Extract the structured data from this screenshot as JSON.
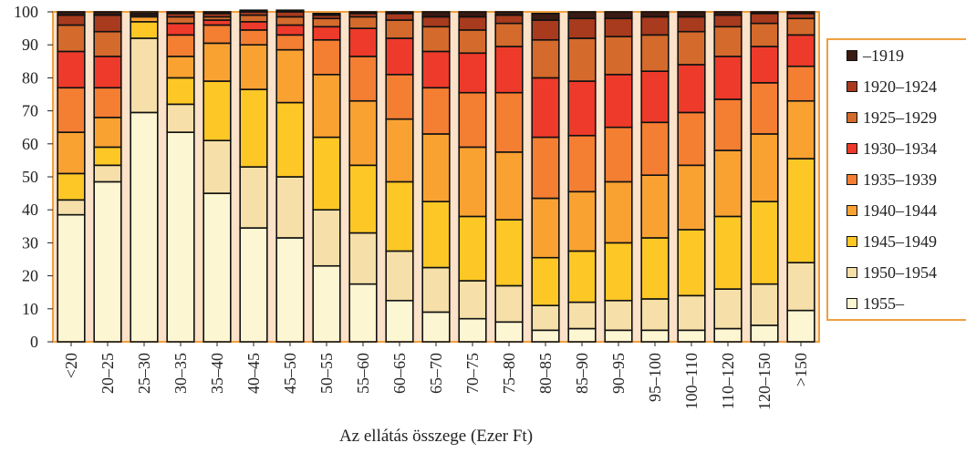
{
  "chart_data": {
    "type": "bar",
    "stacked": true,
    "xlabel": "Az ellátás összege (Ezer Ft)",
    "ylim": [
      0,
      100
    ],
    "yticks": [
      0,
      10,
      20,
      30,
      40,
      50,
      60,
      70,
      80,
      90,
      100
    ],
    "categories": [
      "<20",
      "20–25",
      "25–30",
      "30–35",
      "35–40",
      "40–45",
      "45–50",
      "50–55",
      "55–60",
      "60–65",
      "65–70",
      "70–75",
      "75–80",
      "80–85",
      "85–90",
      "90–95",
      "95–100",
      "100–110",
      "110–120",
      "120–150",
      ">150"
    ],
    "series": [
      {
        "name": "1955–",
        "color": "#fdf6d2",
        "values": [
          38.5,
          48.5,
          69.5,
          63.5,
          45,
          34.5,
          31.5,
          23,
          17.5,
          12.5,
          9,
          7,
          6,
          3.5,
          4,
          3.5,
          3.5,
          3.5,
          4,
          5,
          9.5
        ]
      },
      {
        "name": "1950–1954",
        "color": "#f6dfa8",
        "values": [
          4.5,
          5,
          22.5,
          8.5,
          16,
          18.5,
          18.5,
          17,
          15.5,
          15,
          13.5,
          11.5,
          11,
          7.5,
          8,
          9,
          9.5,
          10.5,
          12,
          12.5,
          14.5
        ]
      },
      {
        "name": "1945–1949",
        "color": "#fdc825",
        "values": [
          8,
          5.5,
          5,
          8,
          18,
          23.5,
          22.5,
          22,
          20.5,
          21,
          20,
          19.5,
          20,
          14.5,
          15.5,
          17.5,
          18.5,
          20,
          22,
          25,
          31.5
        ]
      },
      {
        "name": "1940–1944",
        "color": "#f9a232",
        "values": [
          12.5,
          9,
          1.5,
          6.5,
          11.5,
          13.5,
          16,
          19,
          19.5,
          19,
          20.5,
          21,
          20.5,
          18,
          18,
          18.5,
          19,
          19.5,
          20,
          20.5,
          17.5
        ]
      },
      {
        "name": "1935–1939",
        "color": "#f47e32",
        "values": [
          13.5,
          9,
          0.5,
          6.5,
          5.5,
          4.5,
          4.5,
          10.5,
          13.5,
          13.5,
          14,
          16.5,
          18,
          18.5,
          17,
          16.5,
          16,
          16,
          15.5,
          15.5,
          10.5
        ]
      },
      {
        "name": "1930–1934",
        "color": "#ee3a2a",
        "values": [
          11,
          9.5,
          0.5,
          3.5,
          1.5,
          2.5,
          3,
          4,
          8.5,
          11,
          11,
          12,
          14,
          18,
          16.5,
          16,
          15.5,
          14.5,
          13,
          11,
          9.5
        ]
      },
      {
        "name": "1925–1929",
        "color": "#d46a2c",
        "values": [
          8,
          7.5,
          0.5,
          2,
          1,
          2,
          2.5,
          2.5,
          3.5,
          5.5,
          7.5,
          7,
          7,
          11.5,
          13,
          11.5,
          11,
          10,
          9,
          7,
          5
        ]
      },
      {
        "name": "1920–1924",
        "color": "#a83a1e",
        "values": [
          3,
          5,
          0,
          1,
          1,
          1,
          1.5,
          1,
          1,
          2,
          3,
          4,
          2.5,
          6,
          6,
          5.5,
          5.5,
          4.5,
          3.5,
          3,
          1.5
        ]
      },
      {
        "name": "–1919",
        "color": "#3a1a12",
        "values": [
          1,
          1,
          0,
          0.5,
          0.5,
          0.5,
          0.5,
          0.5,
          0.5,
          0.5,
          1.5,
          1.5,
          1,
          2,
          2,
          2,
          1.5,
          1.5,
          1,
          0.5,
          0.5
        ]
      }
    ],
    "legend_order": [
      "–1919",
      "1920–1924",
      "1925–1929",
      "1930–1934",
      "1935–1939",
      "1940–1944",
      "1945–1949",
      "1950–1954",
      "1955–"
    ],
    "legend_position": "right",
    "grid": false,
    "plot_background": "#fbe2c8",
    "frame_color": "#f0a040"
  }
}
